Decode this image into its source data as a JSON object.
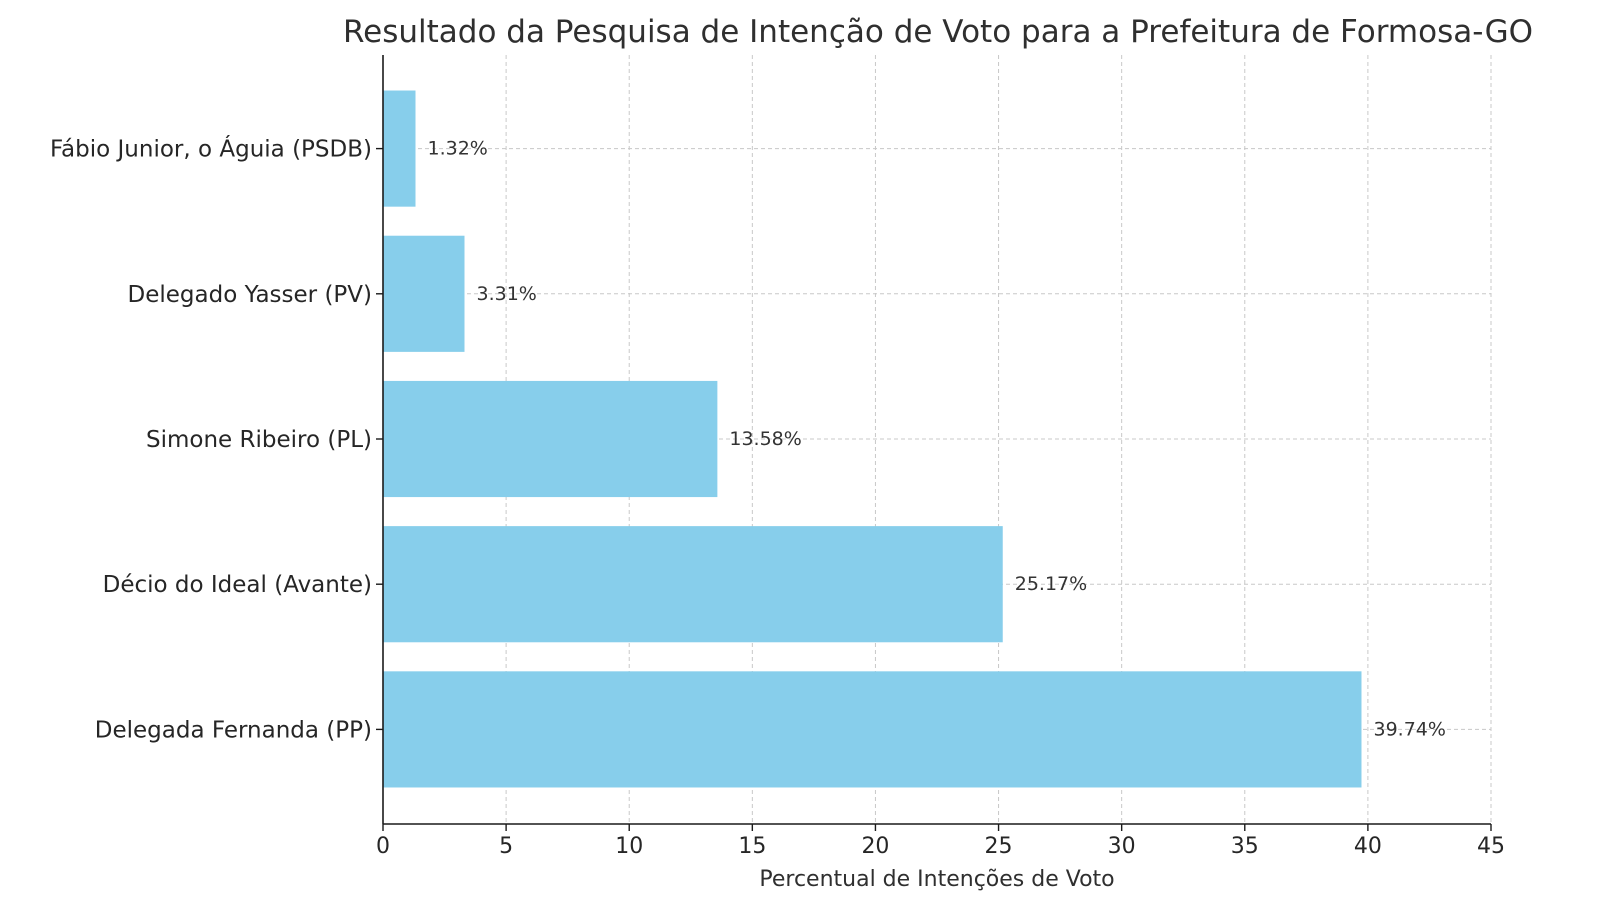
{
  "chart_data": {
    "type": "bar",
    "orientation": "horizontal",
    "title": "Resultado da Pesquisa de Intenção de Voto para a Prefeitura de Formosa-GO",
    "xlabel": "Percentual de Intenções de Voto",
    "ylabel": "",
    "xlim": [
      0,
      45
    ],
    "xticks": [
      0,
      5,
      10,
      15,
      20,
      25,
      30,
      35,
      40,
      45
    ],
    "grid": true,
    "bar_color": "#87ceeb",
    "categories": [
      "Delegada Fernanda (PP)",
      "Décio do Ideal (Avante)",
      "Simone Ribeiro (PL)",
      "Delegado Yasser (PV)",
      "Fábio Junior, o Águia (PSDB)"
    ],
    "values": [
      39.74,
      25.17,
      13.58,
      3.31,
      1.32
    ],
    "value_labels": [
      "39.74%",
      "25.17%",
      "13.58%",
      "3.31%",
      "1.32%"
    ]
  }
}
